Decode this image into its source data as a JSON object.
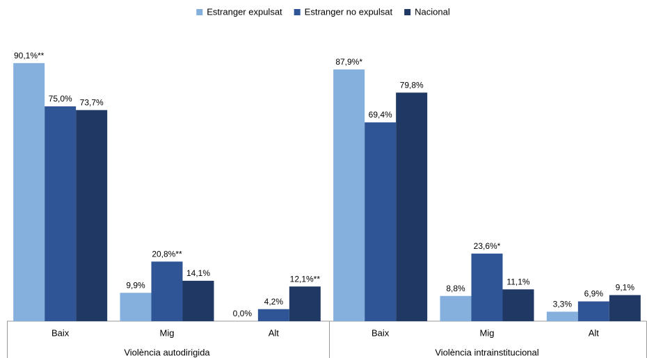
{
  "chart_data": {
    "type": "bar",
    "groups": [
      "Violència autodirigida",
      "Violència intrainstitucional"
    ],
    "categories": [
      "Baix",
      "Mig",
      "Alt",
      "Baix",
      "Mig",
      "Alt"
    ],
    "series": [
      {
        "name": "Estranger expulsat",
        "color": "#85b0dd",
        "values": [
          90.1,
          9.9,
          0.0,
          87.9,
          8.8,
          3.3
        ],
        "value_labels": [
          "90,1%**",
          "9,9%",
          "0,0%",
          "87,9%*",
          "8,8%",
          "3,3%"
        ]
      },
      {
        "name": "Estranger no expulsat",
        "color": "#2f5597",
        "values": [
          75.0,
          20.8,
          4.2,
          69.4,
          23.6,
          6.9
        ],
        "value_labels": [
          "75,0%",
          "20,8%**",
          "4,2%",
          "69,4%",
          "23,6%*",
          "6,9%"
        ]
      },
      {
        "name": "Nacional",
        "color": "#203864",
        "values": [
          73.7,
          14.1,
          12.1,
          79.8,
          11.1,
          9.1
        ],
        "value_labels": [
          "73,7%",
          "14,1%",
          "12,1%**",
          "79,8%",
          "11,1%",
          "9,1%"
        ]
      }
    ],
    "ylim": [
      0,
      100
    ],
    "legend": "top"
  }
}
